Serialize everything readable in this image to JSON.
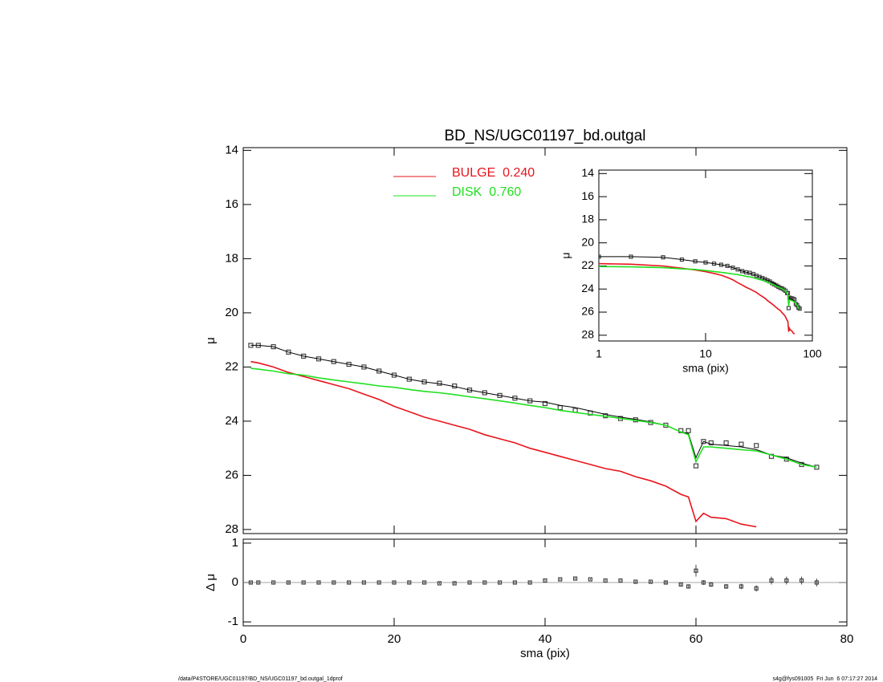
{
  "chart_data": [
    {
      "type": "line",
      "title": "BD_NS/UGC01197_bd.outgal",
      "ylabel": "μ",
      "x": [
        1,
        2,
        4,
        6,
        8,
        10,
        12,
        14,
        16,
        18,
        20,
        22,
        24,
        26,
        28,
        30,
        32,
        34,
        36,
        38,
        40,
        42,
        44,
        46,
        48,
        50,
        52,
        54,
        56,
        58,
        59,
        60,
        61,
        62,
        64,
        66,
        68,
        70,
        72,
        74,
        76
      ],
      "xlim": [
        0,
        80
      ],
      "xticks": [
        0,
        20,
        40,
        60,
        80
      ],
      "ylim": [
        13.9,
        28.15
      ],
      "yticks": [
        14,
        16,
        18,
        20,
        22,
        24,
        26,
        28
      ],
      "yreversed": true,
      "series": [
        {
          "style": "squares",
          "color": "#444444",
          "values": [
            21.2,
            21.2,
            21.25,
            21.45,
            21.6,
            21.7,
            21.8,
            21.9,
            22.0,
            22.15,
            22.3,
            22.45,
            22.55,
            22.6,
            22.7,
            22.85,
            22.95,
            23.05,
            23.15,
            23.25,
            23.35,
            23.5,
            23.6,
            23.7,
            23.8,
            23.9,
            23.95,
            24.05,
            24.15,
            24.35,
            24.35,
            25.65,
            24.75,
            24.8,
            24.8,
            24.85,
            24.9,
            25.3,
            25.4,
            25.6,
            25.7
          ]
        },
        {
          "style": "line",
          "color": "#000000",
          "values": [
            21.2,
            21.2,
            21.25,
            21.45,
            21.6,
            21.7,
            21.8,
            21.9,
            22.0,
            22.15,
            22.3,
            22.45,
            22.55,
            22.62,
            22.72,
            22.85,
            22.95,
            23.05,
            23.15,
            23.25,
            23.3,
            23.42,
            23.5,
            23.62,
            23.75,
            23.85,
            23.93,
            24.03,
            24.15,
            24.4,
            24.45,
            25.35,
            24.75,
            24.85,
            24.9,
            24.95,
            25.05,
            25.25,
            25.35,
            25.55,
            25.7
          ]
        },
        {
          "style": "line",
          "name": "BULGE  0.240",
          "color": "#e8141c",
          "values": [
            21.8,
            21.85,
            22.0,
            22.2,
            22.35,
            22.5,
            22.65,
            22.8,
            23.0,
            23.2,
            23.45,
            23.65,
            23.85,
            24.0,
            24.15,
            24.3,
            24.5,
            24.65,
            24.8,
            25.0,
            25.15,
            25.3,
            25.45,
            25.6,
            25.75,
            25.85,
            26.05,
            26.2,
            26.4,
            26.7,
            26.8,
            27.7,
            27.4,
            27.55,
            27.6,
            27.8,
            27.9,
            null,
            null,
            null,
            null
          ]
        },
        {
          "style": "line",
          "name": "DISK  0.760",
          "color": "#1fe01f",
          "values": [
            22.05,
            22.08,
            22.15,
            22.25,
            22.3,
            22.4,
            22.48,
            22.55,
            22.62,
            22.7,
            22.75,
            22.83,
            22.9,
            22.95,
            23.02,
            23.1,
            23.17,
            23.25,
            23.33,
            23.42,
            23.5,
            23.6,
            23.68,
            23.75,
            23.82,
            23.9,
            23.97,
            24.05,
            24.15,
            24.4,
            24.5,
            25.5,
            24.95,
            24.95,
            25.0,
            25.05,
            25.1,
            25.25,
            25.4,
            25.6,
            25.7
          ]
        }
      ]
    },
    {
      "type": "scatter",
      "ylabel": "Δ μ",
      "xlabel": "sma (pix)",
      "x": [
        1,
        2,
        4,
        6,
        8,
        10,
        12,
        14,
        16,
        18,
        20,
        22,
        24,
        26,
        28,
        30,
        32,
        34,
        36,
        38,
        40,
        42,
        44,
        46,
        48,
        50,
        52,
        54,
        56,
        58,
        59,
        60,
        61,
        62,
        64,
        66,
        68,
        70,
        72,
        74,
        76
      ],
      "xlim": [
        0,
        80
      ],
      "xticks": [
        0,
        20,
        40,
        60,
        80
      ],
      "ylim": [
        -1.1,
        1.1
      ],
      "yticks": [
        -1,
        0,
        1
      ],
      "values": [
        0,
        0,
        0,
        0,
        0,
        0,
        0,
        0,
        0,
        0,
        0,
        0,
        0,
        -0.02,
        -0.02,
        0,
        0,
        0,
        0,
        0,
        0.05,
        0.08,
        0.1,
        0.08,
        0.05,
        0.05,
        0.02,
        0.02,
        0,
        -0.05,
        -0.1,
        0.3,
        0,
        -0.05,
        -0.1,
        -0.1,
        -0.15,
        0.05,
        0.05,
        0.05,
        0
      ],
      "errors": [
        0.02,
        0.02,
        0.02,
        0.02,
        0.02,
        0.02,
        0.02,
        0.02,
        0.02,
        0.02,
        0.02,
        0.02,
        0.02,
        0.02,
        0.02,
        0.02,
        0.02,
        0.02,
        0.02,
        0.02,
        0.02,
        0.02,
        0.02,
        0.02,
        0.02,
        0.02,
        0.02,
        0.02,
        0.03,
        0.04,
        0.05,
        0.15,
        0.06,
        0.06,
        0.06,
        0.07,
        0.08,
        0.1,
        0.1,
        0.1,
        0.1
      ],
      "color": "#444444"
    },
    {
      "type": "line",
      "xscale": "log",
      "xlabel": "sma (pix)",
      "ylabel": "μ",
      "xlim": [
        1,
        100
      ],
      "xticks": [
        1,
        10,
        100
      ],
      "ylim": [
        13.7,
        28.5
      ],
      "yticks": [
        14,
        16,
        18,
        20,
        22,
        24,
        26,
        28
      ],
      "yreversed": true
    }
  ],
  "footer": {
    "left": "/data/P4STORE/UGC01197/BD_NS/UGC01197_bd.outgal_1dprof",
    "right": "s4g@fys091005  Fri Jun  6 07:17:27 2014"
  }
}
